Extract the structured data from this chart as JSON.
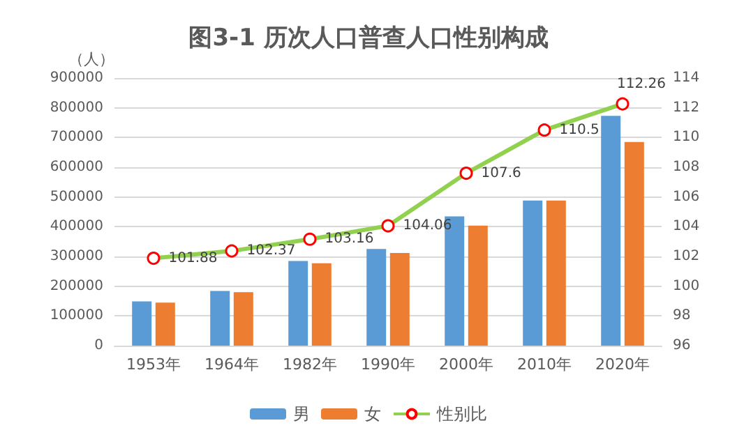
{
  "chart_data": {
    "type": "bar",
    "title": "图3-1 历次人口普查人口性别构成",
    "ylabel": "（人）",
    "categories": [
      "1953年",
      "1964年",
      "1982年",
      "1990年",
      "2000年",
      "2010年",
      "2020年"
    ],
    "series": [
      {
        "name": "男",
        "color": "#5b9bd5",
        "values": [
          149000,
          184000,
          285000,
          325000,
          435000,
          488000,
          773000
        ]
      },
      {
        "name": "女",
        "color": "#ed7d31",
        "values": [
          145000,
          180000,
          277000,
          312000,
          404000,
          488000,
          685000
        ]
      },
      {
        "name": "性别比",
        "type": "line",
        "axis": "y2",
        "color": "#92d050",
        "marker": "circle",
        "values": [
          101.88,
          102.37,
          103.16,
          104.06,
          107.6,
          110.5,
          112.26
        ],
        "value_labels": [
          "101.88",
          "102.37",
          "103.16",
          "104.06",
          "107.6",
          "110.5",
          "112.26"
        ]
      }
    ],
    "ylim": [
      0,
      900000
    ],
    "yticks": [
      0,
      100000,
      200000,
      300000,
      400000,
      500000,
      600000,
      700000,
      800000,
      900000
    ],
    "y2lim": [
      96,
      114
    ],
    "y2ticks": [
      96,
      98,
      100,
      102,
      104,
      106,
      108,
      110,
      112,
      114
    ],
    "grid": "y",
    "legend": "bottom"
  }
}
